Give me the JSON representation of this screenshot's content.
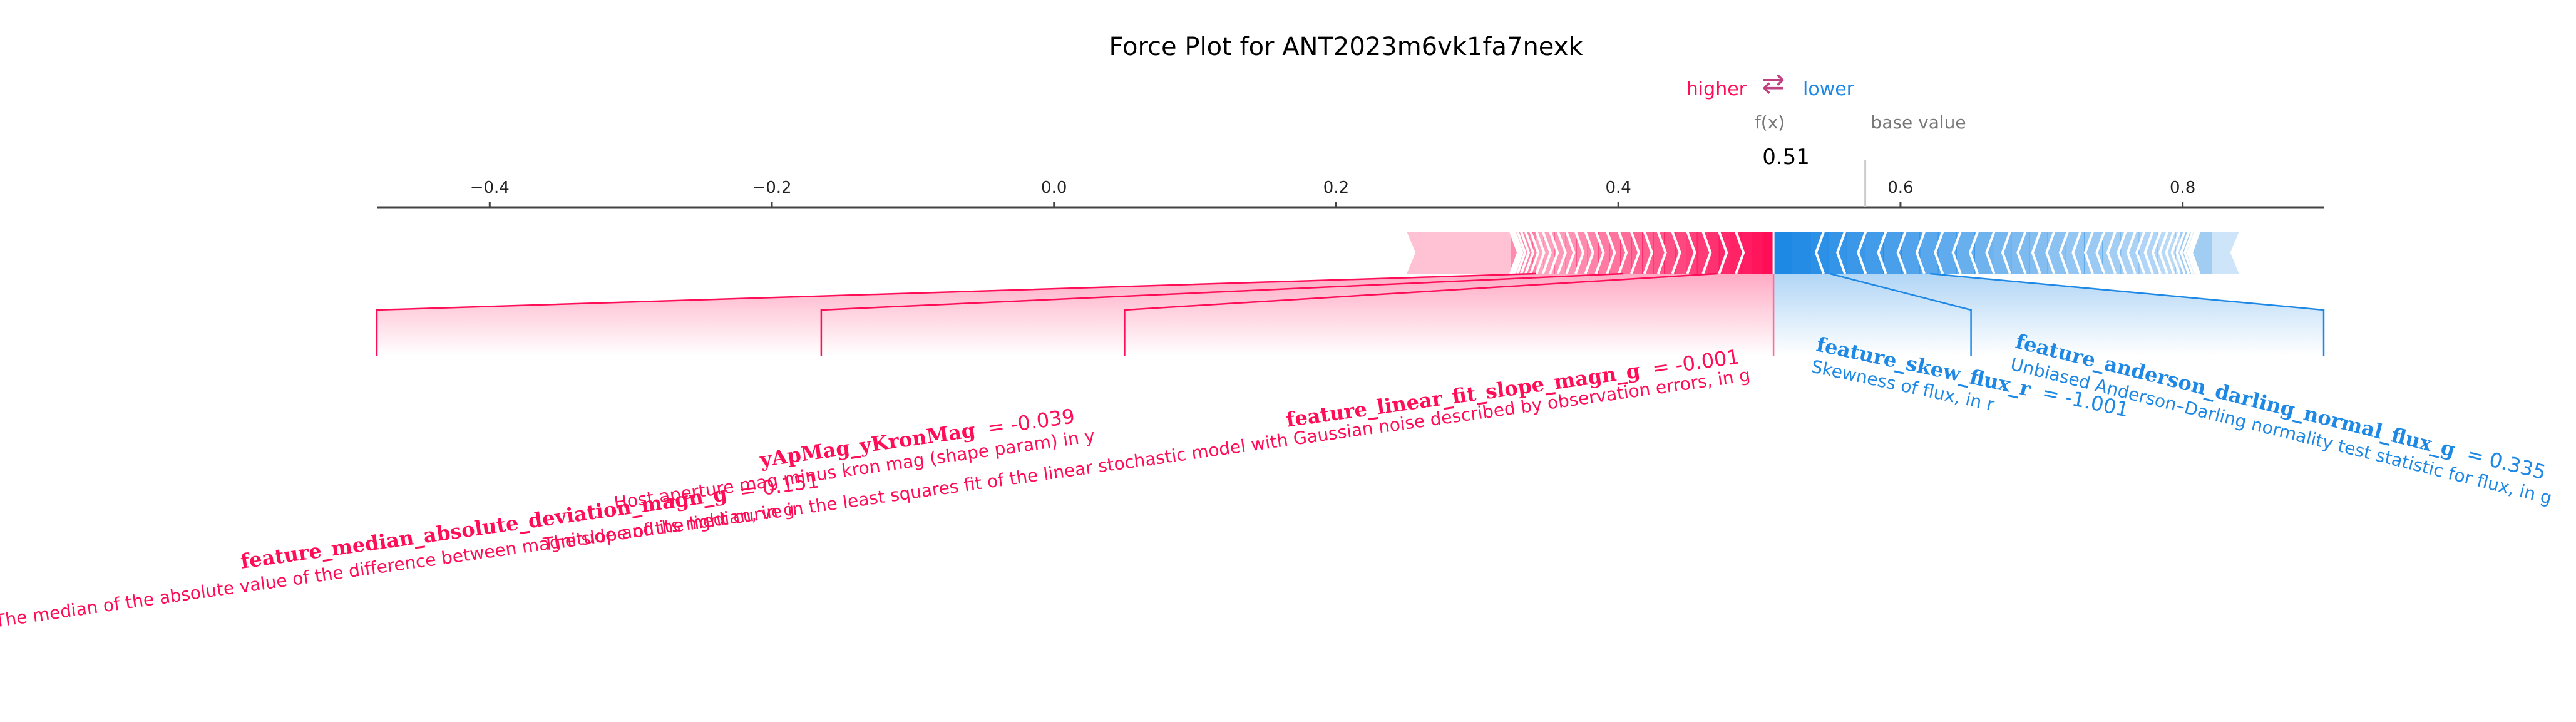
{
  "chart_data": {
    "type": "force",
    "title": "Force Plot for ANT2023m6vk1fa7nexk",
    "legend": {
      "higher": "higher",
      "lower": "lower",
      "arrow": "⇄"
    },
    "fx_label": "f(x)",
    "base_label": "base value",
    "fx_value": 0.51,
    "fx_text": "0.51",
    "base_value": 0.575,
    "xlim": [
      -0.48,
      0.9
    ],
    "ticks": [
      -0.4,
      -0.2,
      0.0,
      0.2,
      0.4,
      0.6,
      0.8
    ],
    "tick_labels": [
      "−0.4",
      "−0.2",
      "0.0",
      "0.2",
      "0.4",
      "0.6",
      "0.8"
    ],
    "positive_extent": 0.25,
    "negative_extent": 0.84,
    "colors": {
      "positive": "#ff0d57",
      "negative": "#1e88e5",
      "axis": "#444444"
    },
    "positive_features": [
      {
        "name": "feature_median_absolute_deviation_magn_g",
        "value_text": "= 0.151",
        "description": "The median of the absolute value of the difference between magnitude and its median, in g",
        "connector_x": -0.48
      },
      {
        "name": "yApMag_yKronMag",
        "value_text": "= -0.039",
        "description": "Host aperture mag minus kron mag (shape param) in y",
        "connector_x": -0.165
      },
      {
        "name": "feature_linear_fit_slope_magn_g",
        "value_text": "= -0.001",
        "description": "The slope of the light curve in the least squares fit of the linear stochastic model with Gaussian noise described by observation errors, in g",
        "connector_x": 0.05
      }
    ],
    "negative_features": [
      {
        "name": "feature_skew_flux_r",
        "value_text": "= -1.001",
        "description": "Skewness of flux, in r",
        "connector_x": 0.65
      },
      {
        "name": "feature_anderson_darling_normal_flux_g",
        "value_text": "= 0.335",
        "description": "Unbiased Anderson–Darling normality test statistic for flux, in g",
        "connector_x": 0.9
      }
    ]
  }
}
